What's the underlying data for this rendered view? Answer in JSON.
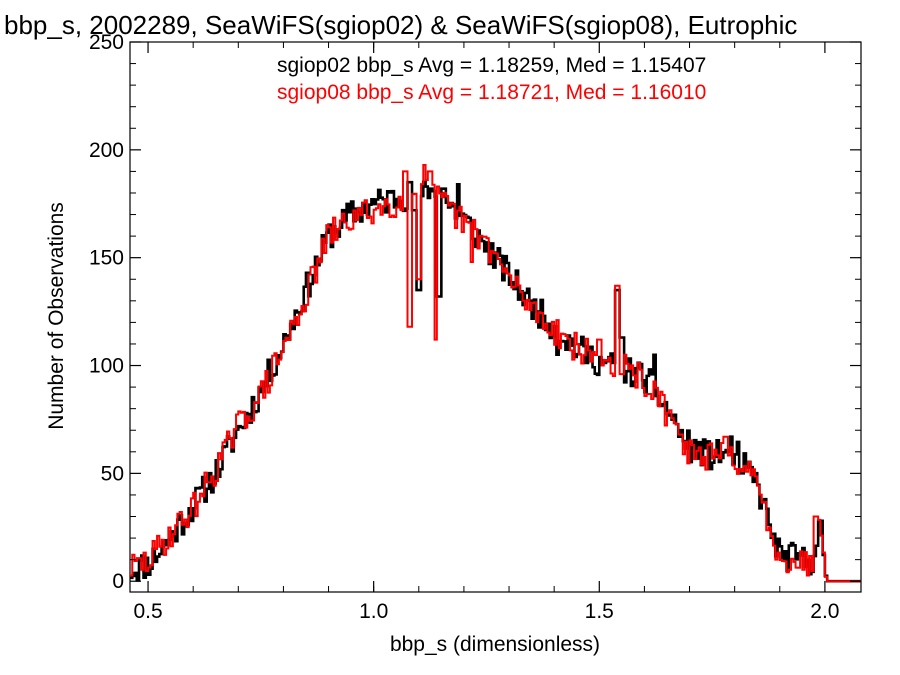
{
  "chart_data": {
    "type": "step",
    "title": "bbp_s, 2002289, SeaWiFS(sgiop02) & SeaWiFS(sgiop08), Eutrophic",
    "xlabel": "bbp_s (dimensionless)",
    "ylabel": "Number of Observations",
    "xlim": [
      0.46,
      2.08
    ],
    "ylim": [
      -5,
      250
    ],
    "x_ticks": [
      0.5,
      1.0,
      1.5,
      2.0
    ],
    "x_tick_labels": [
      "0.5",
      "1.0",
      "1.5",
      "2.0"
    ],
    "y_ticks": [
      0,
      50,
      100,
      150,
      200,
      250
    ],
    "y_tick_labels": [
      "0",
      "50",
      "100",
      "150",
      "200",
      "250"
    ],
    "grid": false,
    "bin_width": 0.005,
    "x_start": 0.46,
    "annotations": [
      {
        "text": "sgiop02 bbp_s Avg = 1.18259, Med = 1.15407",
        "color": "#000000"
      },
      {
        "text": "sgiop08 bbp_s Avg = 1.18721, Med = 1.16010",
        "color": "#ff0000"
      }
    ],
    "series": [
      {
        "color": "#000000",
        "profile": [
          [
            0.46,
            5
          ],
          [
            0.5,
            8
          ],
          [
            0.55,
            20
          ],
          [
            0.6,
            35
          ],
          [
            0.65,
            50
          ],
          [
            0.7,
            70
          ],
          [
            0.75,
            88
          ],
          [
            0.8,
            110
          ],
          [
            0.85,
            135
          ],
          [
            0.9,
            160
          ],
          [
            0.95,
            170
          ],
          [
            1.0,
            175
          ],
          [
            1.05,
            178
          ],
          [
            1.1,
            180
          ],
          [
            1.15,
            178
          ],
          [
            1.2,
            168
          ],
          [
            1.25,
            155
          ],
          [
            1.3,
            142
          ],
          [
            1.35,
            128
          ],
          [
            1.4,
            118
          ],
          [
            1.45,
            108
          ],
          [
            1.5,
            102
          ],
          [
            1.55,
            98
          ],
          [
            1.6,
            95
          ],
          [
            1.65,
            80
          ],
          [
            1.7,
            62
          ],
          [
            1.75,
            58
          ],
          [
            1.8,
            60
          ],
          [
            1.85,
            45
          ],
          [
            1.88,
            25
          ],
          [
            1.9,
            12
          ],
          [
            1.95,
            10
          ],
          [
            1.97,
            8
          ],
          [
            1.98,
            20
          ],
          [
            2.0,
            5
          ],
          [
            2.005,
            0
          ],
          [
            2.08,
            0
          ]
        ],
        "spikes": [
          [
            1.08,
            185
          ],
          [
            1.09,
            172
          ],
          [
            1.13,
            182
          ],
          [
            1.145,
            160
          ],
          [
            1.155,
            182
          ],
          [
            1.19,
            184
          ],
          [
            1.1,
            135
          ],
          [
            1.145,
            132
          ],
          [
            1.36,
            125
          ],
          [
            1.41,
            105
          ],
          [
            1.55,
            113
          ],
          [
            1.54,
            135
          ],
          [
            1.62,
            105
          ],
          [
            1.685,
            65
          ],
          [
            1.795,
            67
          ],
          [
            1.815,
            50
          ],
          [
            1.89,
            22
          ],
          [
            1.99,
            28
          ]
        ],
        "jitter": 7,
        "seed": 11
      },
      {
        "color": "#ff0000",
        "profile": [
          [
            0.46,
            6
          ],
          [
            0.5,
            9
          ],
          [
            0.55,
            22
          ],
          [
            0.6,
            34
          ],
          [
            0.65,
            52
          ],
          [
            0.7,
            72
          ],
          [
            0.75,
            86
          ],
          [
            0.8,
            108
          ],
          [
            0.85,
            132
          ],
          [
            0.9,
            160
          ],
          [
            0.95,
            168
          ],
          [
            1.0,
            172
          ],
          [
            1.05,
            176
          ],
          [
            1.1,
            182
          ],
          [
            1.15,
            176
          ],
          [
            1.2,
            166
          ],
          [
            1.25,
            157
          ],
          [
            1.3,
            140
          ],
          [
            1.35,
            127
          ],
          [
            1.4,
            117
          ],
          [
            1.45,
            108
          ],
          [
            1.5,
            103
          ],
          [
            1.55,
            100
          ],
          [
            1.6,
            93
          ],
          [
            1.65,
            78
          ],
          [
            1.7,
            60
          ],
          [
            1.75,
            57
          ],
          [
            1.8,
            59
          ],
          [
            1.85,
            44
          ],
          [
            1.88,
            24
          ],
          [
            1.9,
            12
          ],
          [
            1.95,
            9
          ],
          [
            1.97,
            7
          ],
          [
            1.98,
            22
          ],
          [
            1.99,
            30
          ],
          [
            2.0,
            4
          ],
          [
            2.005,
            0
          ],
          [
            2.08,
            0
          ]
        ],
        "spikes": [
          [
            1.07,
            190
          ],
          [
            1.11,
            193
          ],
          [
            1.125,
            190
          ],
          [
            1.1,
            140
          ],
          [
            1.14,
            148
          ],
          [
            1.08,
            118
          ],
          [
            1.14,
            112
          ],
          [
            1.22,
            148
          ],
          [
            1.5,
            112
          ],
          [
            1.54,
            137
          ],
          [
            1.55,
            96
          ],
          [
            1.68,
            68
          ],
          [
            1.78,
            67
          ],
          [
            1.81,
            52
          ],
          [
            1.98,
            30
          ]
        ],
        "jitter": 7,
        "seed": 29
      }
    ]
  }
}
